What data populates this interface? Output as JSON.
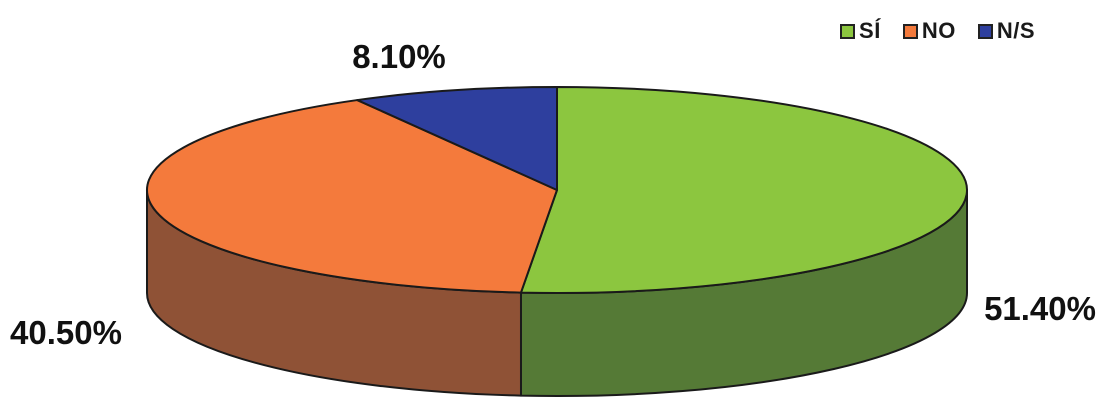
{
  "chart_data": {
    "type": "pie",
    "style": "3d",
    "title": "",
    "legend_position": "top-right",
    "slices": [
      {
        "label": "SÍ",
        "value": 51.4,
        "display": "51.40%",
        "color": "#8cc63f",
        "side_color": "#557a36"
      },
      {
        "label": "NO",
        "value": 40.5,
        "display": "40.50%",
        "color": "#f47a3c",
        "side_color": "#8f5236"
      },
      {
        "label": "N/S",
        "value": 8.1,
        "display": "8.10%",
        "color": "#2e3f9e",
        "side_color": "#1f2a6a"
      }
    ]
  }
}
